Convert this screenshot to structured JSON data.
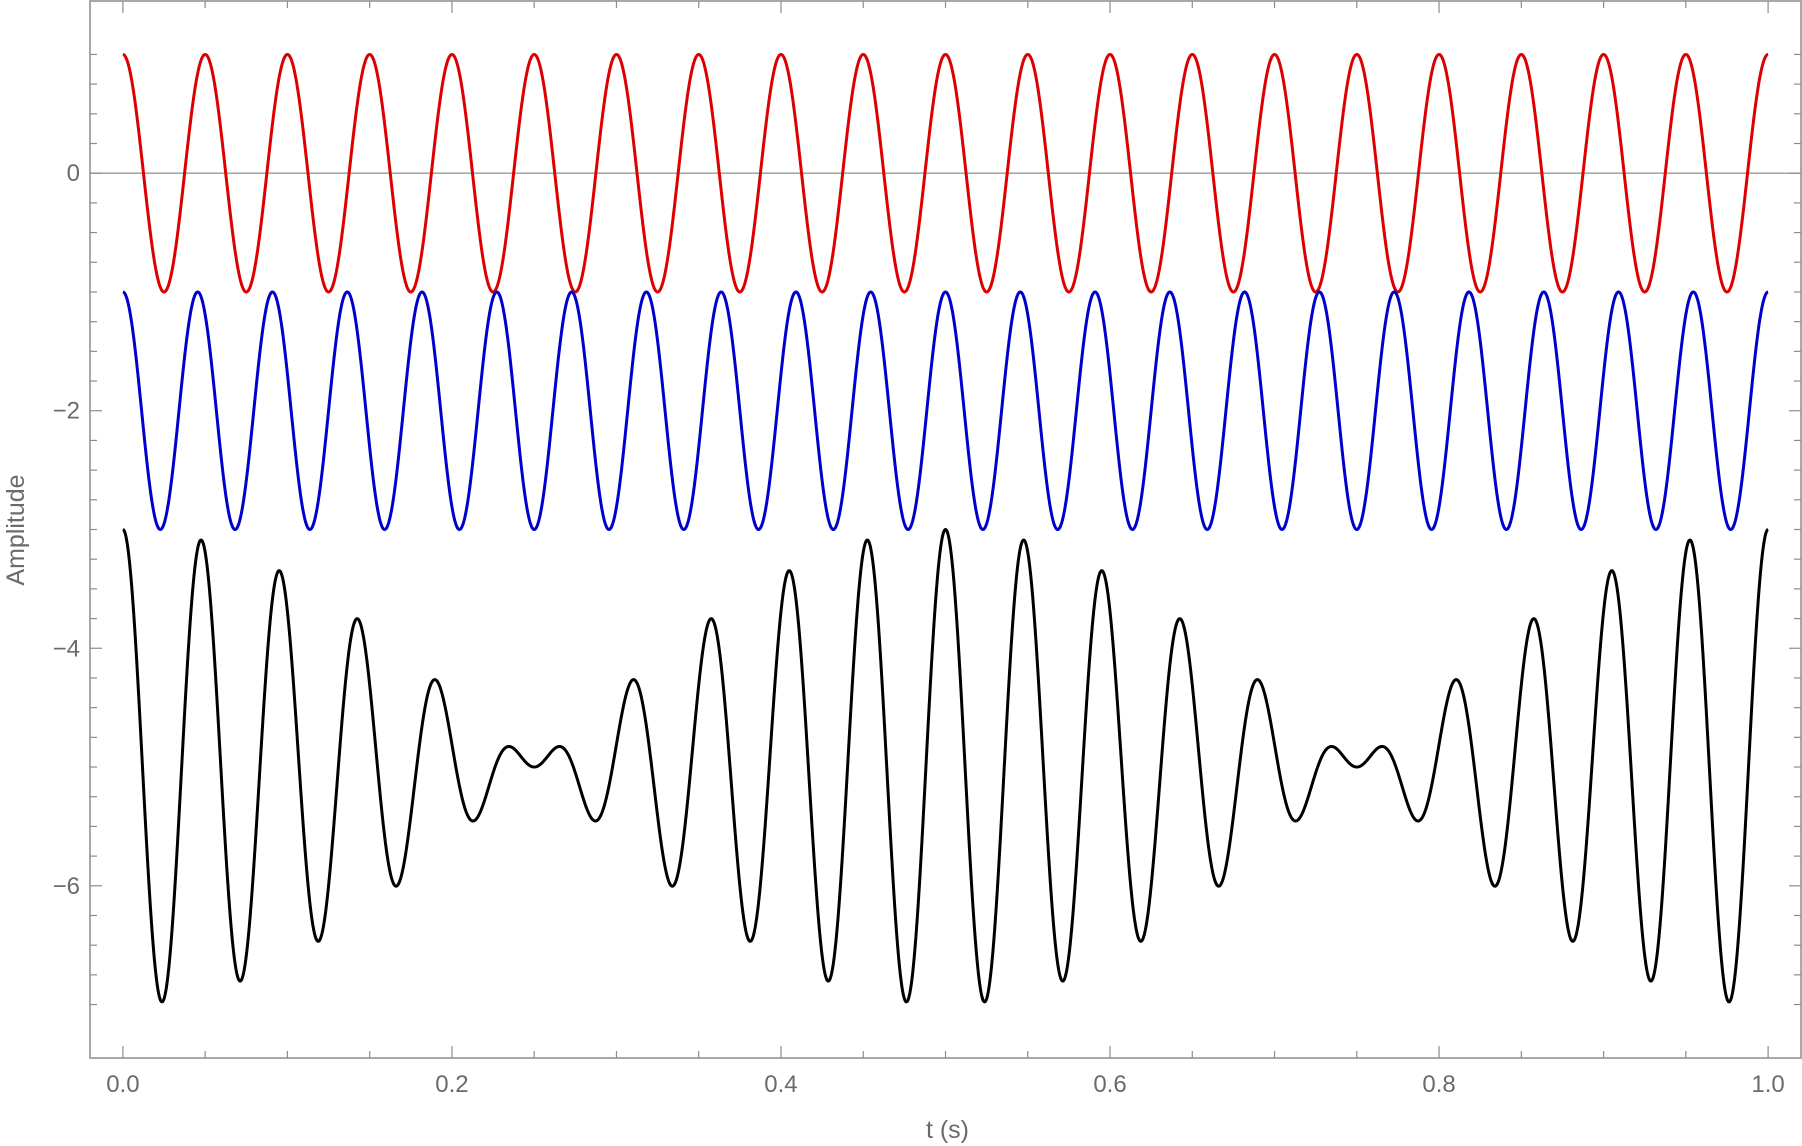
{
  "chart_data": {
    "type": "line",
    "title": "",
    "xlabel": "t (s)",
    "ylabel": "Amplitude",
    "xlim": [
      -0.02,
      1.02
    ],
    "ylim": [
      -7.45,
      1.45
    ],
    "x_ticks": [
      0.0,
      0.2,
      0.4,
      0.6,
      0.8,
      1.0
    ],
    "x_tick_labels": [
      "0.0",
      "0.2",
      "0.4",
      "0.6",
      "0.8",
      "1.0"
    ],
    "y_ticks": [
      0,
      -2,
      -4,
      -6
    ],
    "y_tick_labels": [
      "0",
      "−2",
      "−4",
      "−6"
    ],
    "grid": false,
    "frame": true,
    "series": [
      {
        "color": "#dd0000",
        "function": "cos(2*pi*20*t)",
        "frequency_hz": 20,
        "amplitude": 1,
        "offset": 0,
        "t_range": [
          0,
          1
        ]
      },
      {
        "color": "#0000cc",
        "function": "cos(2*pi*22*t) - 2",
        "frequency_hz": 22,
        "amplitude": 1,
        "offset": -2,
        "t_range": [
          0,
          1
        ]
      },
      {
        "color": "#000000",
        "function": "cos(2*pi*20*t) + cos(2*pi*22*t) - 5",
        "components_hz": [
          20,
          22
        ],
        "offset": -5,
        "t_range": [
          0,
          1
        ]
      }
    ]
  }
}
